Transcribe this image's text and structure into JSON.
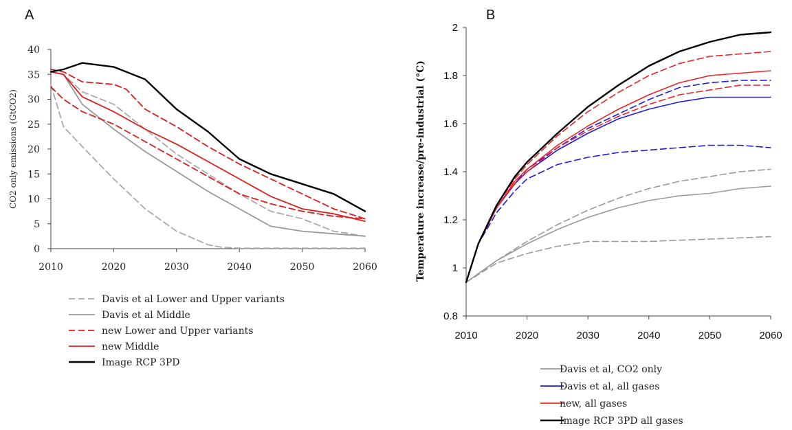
{
  "chart_data": [
    {
      "panel_label": "A",
      "type": "line",
      "ylabel": "CO2 only emissions (GtCO2)",
      "xlim": [
        2010,
        2060
      ],
      "ylim": [
        0,
        40
      ],
      "x_ticks": [
        "2010",
        "2020",
        "2030",
        "2040",
        "2050",
        "2060"
      ],
      "y_ticks": [
        "0",
        "5",
        "10",
        "15",
        "20",
        "25",
        "30",
        "35",
        "40"
      ],
      "grid": false,
      "legend_position": "bottom",
      "legend": [
        {
          "label": "Davis et al Lower and Upper variants",
          "color": "#aaaaaa",
          "dash": true
        },
        {
          "label": "Davis et al Middle",
          "color": "#999999",
          "dash": false
        },
        {
          "label": "new Lower and Upper variants",
          "color": "#dd1c1c",
          "dash": true
        },
        {
          "label": "new Middle",
          "color": "#dd1c1c",
          "dash": false
        },
        {
          "label": "Image RCP 3PD",
          "color": "#000000",
          "dash": false
        }
      ],
      "series": [
        {
          "legend": 0,
          "x": [
            2010,
            2012,
            2015,
            2020,
            2025,
            2030,
            2035,
            2037,
            2040,
            2050,
            2060
          ],
          "y": [
            33,
            24.5,
            20.5,
            14,
            8,
            3.5,
            0.8,
            0.3,
            0.1,
            0.1,
            0.1
          ]
        },
        {
          "legend": 0,
          "x": [
            2010,
            2012,
            2015,
            2020,
            2025,
            2030,
            2035,
            2040,
            2045,
            2050,
            2055,
            2060
          ],
          "y": [
            35.5,
            35,
            31.5,
            29,
            24,
            19,
            15,
            11,
            7.5,
            6,
            3.5,
            2.5
          ]
        },
        {
          "legend": 1,
          "x": [
            2010,
            2012,
            2015,
            2020,
            2025,
            2030,
            2035,
            2040,
            2045,
            2050,
            2055,
            2060
          ],
          "y": [
            35.5,
            35,
            29,
            24,
            19.5,
            15.5,
            11.5,
            8,
            4.5,
            3.5,
            3,
            2.5
          ]
        },
        {
          "legend": 2,
          "x": [
            2010,
            2012,
            2015,
            2020,
            2025,
            2030,
            2035,
            2040,
            2045,
            2050,
            2055,
            2060
          ],
          "y": [
            32.5,
            30,
            27.5,
            25,
            21.5,
            18,
            14.5,
            11,
            9,
            7.5,
            6.5,
            6
          ]
        },
        {
          "legend": 2,
          "x": [
            2010,
            2012,
            2015,
            2020,
            2022,
            2025,
            2030,
            2035,
            2040,
            2045,
            2050,
            2055,
            2060
          ],
          "y": [
            36,
            35.5,
            33.5,
            33,
            32,
            28,
            24.5,
            20.5,
            17,
            14,
            11,
            8,
            6
          ]
        },
        {
          "legend": 3,
          "x": [
            2010,
            2012,
            2015,
            2020,
            2025,
            2030,
            2035,
            2040,
            2045,
            2050,
            2055,
            2060
          ],
          "y": [
            35.5,
            35,
            30.5,
            27.5,
            24,
            21,
            17.5,
            14,
            10.5,
            8,
            7,
            5.5
          ]
        },
        {
          "legend": 4,
          "x": [
            2010,
            2012,
            2015,
            2020,
            2025,
            2030,
            2035,
            2040,
            2045,
            2050,
            2055,
            2060
          ],
          "y": [
            35.5,
            36,
            37.3,
            36.5,
            34,
            28,
            23.5,
            18,
            15,
            13,
            11,
            7.5
          ]
        }
      ]
    },
    {
      "panel_label": "B",
      "type": "line",
      "ylabel": "Temperature increase/pre-industrial (°C)",
      "xlim": [
        2010,
        2060
      ],
      "ylim": [
        0.8,
        2
      ],
      "x_ticks": [
        "2010",
        "2020",
        "2030",
        "2040",
        "2050",
        "2060"
      ],
      "y_ticks": [
        "0.8",
        "1",
        "1.2",
        "1.4",
        "1.6",
        "1.8",
        "2"
      ],
      "grid": false,
      "legend_position": "bottom",
      "legend": [
        {
          "label": "Davis et al, CO2 only",
          "color": "#999999",
          "dash": false
        },
        {
          "label": "Davis et al, all gases",
          "color": "#1c1ce0",
          "dash": false
        },
        {
          "label": "new, all gases",
          "color": "#ee2222",
          "dash": false
        },
        {
          "label": "Image RCP 3PD all gases",
          "color": "#000000",
          "dash": false
        }
      ],
      "series": [
        {
          "legend": 0,
          "dash": true,
          "x": [
            2010,
            2015,
            2020,
            2025,
            2030,
            2040,
            2050,
            2060
          ],
          "y": [
            0.94,
            1.02,
            1.06,
            1.09,
            1.11,
            1.11,
            1.12,
            1.13
          ]
        },
        {
          "legend": 0,
          "dash": true,
          "x": [
            2010,
            2015,
            2020,
            2025,
            2030,
            2035,
            2040,
            2045,
            2050,
            2055,
            2060
          ],
          "y": [
            0.94,
            1.03,
            1.11,
            1.18,
            1.24,
            1.29,
            1.33,
            1.36,
            1.38,
            1.4,
            1.41
          ]
        },
        {
          "legend": 0,
          "dash": false,
          "x": [
            2010,
            2015,
            2020,
            2025,
            2030,
            2035,
            2040,
            2045,
            2050,
            2055,
            2060
          ],
          "y": [
            0.94,
            1.03,
            1.1,
            1.16,
            1.21,
            1.25,
            1.28,
            1.3,
            1.31,
            1.33,
            1.34
          ]
        },
        {
          "legend": 1,
          "dash": true,
          "x": [
            2010,
            2012,
            2015,
            2018,
            2020,
            2025,
            2030,
            2035,
            2040,
            2045,
            2050,
            2055,
            2060
          ],
          "y": [
            0.94,
            1.1,
            1.23,
            1.32,
            1.37,
            1.43,
            1.46,
            1.48,
            1.49,
            1.5,
            1.51,
            1.51,
            1.5
          ]
        },
        {
          "legend": 1,
          "dash": false,
          "x": [
            2010,
            2012,
            2015,
            2018,
            2020,
            2025,
            2030,
            2035,
            2040,
            2045,
            2050,
            2055,
            2060
          ],
          "y": [
            0.94,
            1.1,
            1.25,
            1.35,
            1.4,
            1.49,
            1.56,
            1.62,
            1.66,
            1.69,
            1.71,
            1.71,
            1.71
          ]
        },
        {
          "legend": 1,
          "dash": true,
          "x": [
            2010,
            2012,
            2015,
            2018,
            2020,
            2025,
            2030,
            2035,
            2040,
            2045,
            2050,
            2055,
            2060
          ],
          "y": [
            0.94,
            1.1,
            1.25,
            1.35,
            1.41,
            1.5,
            1.58,
            1.64,
            1.7,
            1.75,
            1.77,
            1.78,
            1.78
          ]
        },
        {
          "legend": 2,
          "dash": true,
          "x": [
            2010,
            2012,
            2015,
            2018,
            2020,
            2025,
            2030,
            2035,
            2040,
            2045,
            2050,
            2055,
            2060
          ],
          "y": [
            0.94,
            1.1,
            1.25,
            1.35,
            1.4,
            1.5,
            1.57,
            1.63,
            1.68,
            1.72,
            1.74,
            1.76,
            1.76
          ]
        },
        {
          "legend": 2,
          "dash": false,
          "x": [
            2010,
            2012,
            2015,
            2018,
            2020,
            2025,
            2030,
            2035,
            2040,
            2045,
            2050,
            2055,
            2060
          ],
          "y": [
            0.94,
            1.1,
            1.25,
            1.36,
            1.41,
            1.51,
            1.59,
            1.66,
            1.72,
            1.77,
            1.8,
            1.81,
            1.82
          ]
        },
        {
          "legend": 2,
          "dash": true,
          "x": [
            2010,
            2012,
            2015,
            2018,
            2020,
            2025,
            2030,
            2035,
            2040,
            2045,
            2050,
            2055,
            2060
          ],
          "y": [
            0.94,
            1.1,
            1.26,
            1.37,
            1.43,
            1.55,
            1.65,
            1.73,
            1.8,
            1.85,
            1.88,
            1.89,
            1.9
          ]
        },
        {
          "legend": 3,
          "dash": false,
          "x": [
            2010,
            2012,
            2015,
            2018,
            2020,
            2025,
            2030,
            2035,
            2040,
            2045,
            2050,
            2055,
            2060
          ],
          "y": [
            0.94,
            1.1,
            1.26,
            1.38,
            1.44,
            1.56,
            1.67,
            1.76,
            1.84,
            1.9,
            1.94,
            1.97,
            1.98
          ]
        }
      ]
    }
  ]
}
